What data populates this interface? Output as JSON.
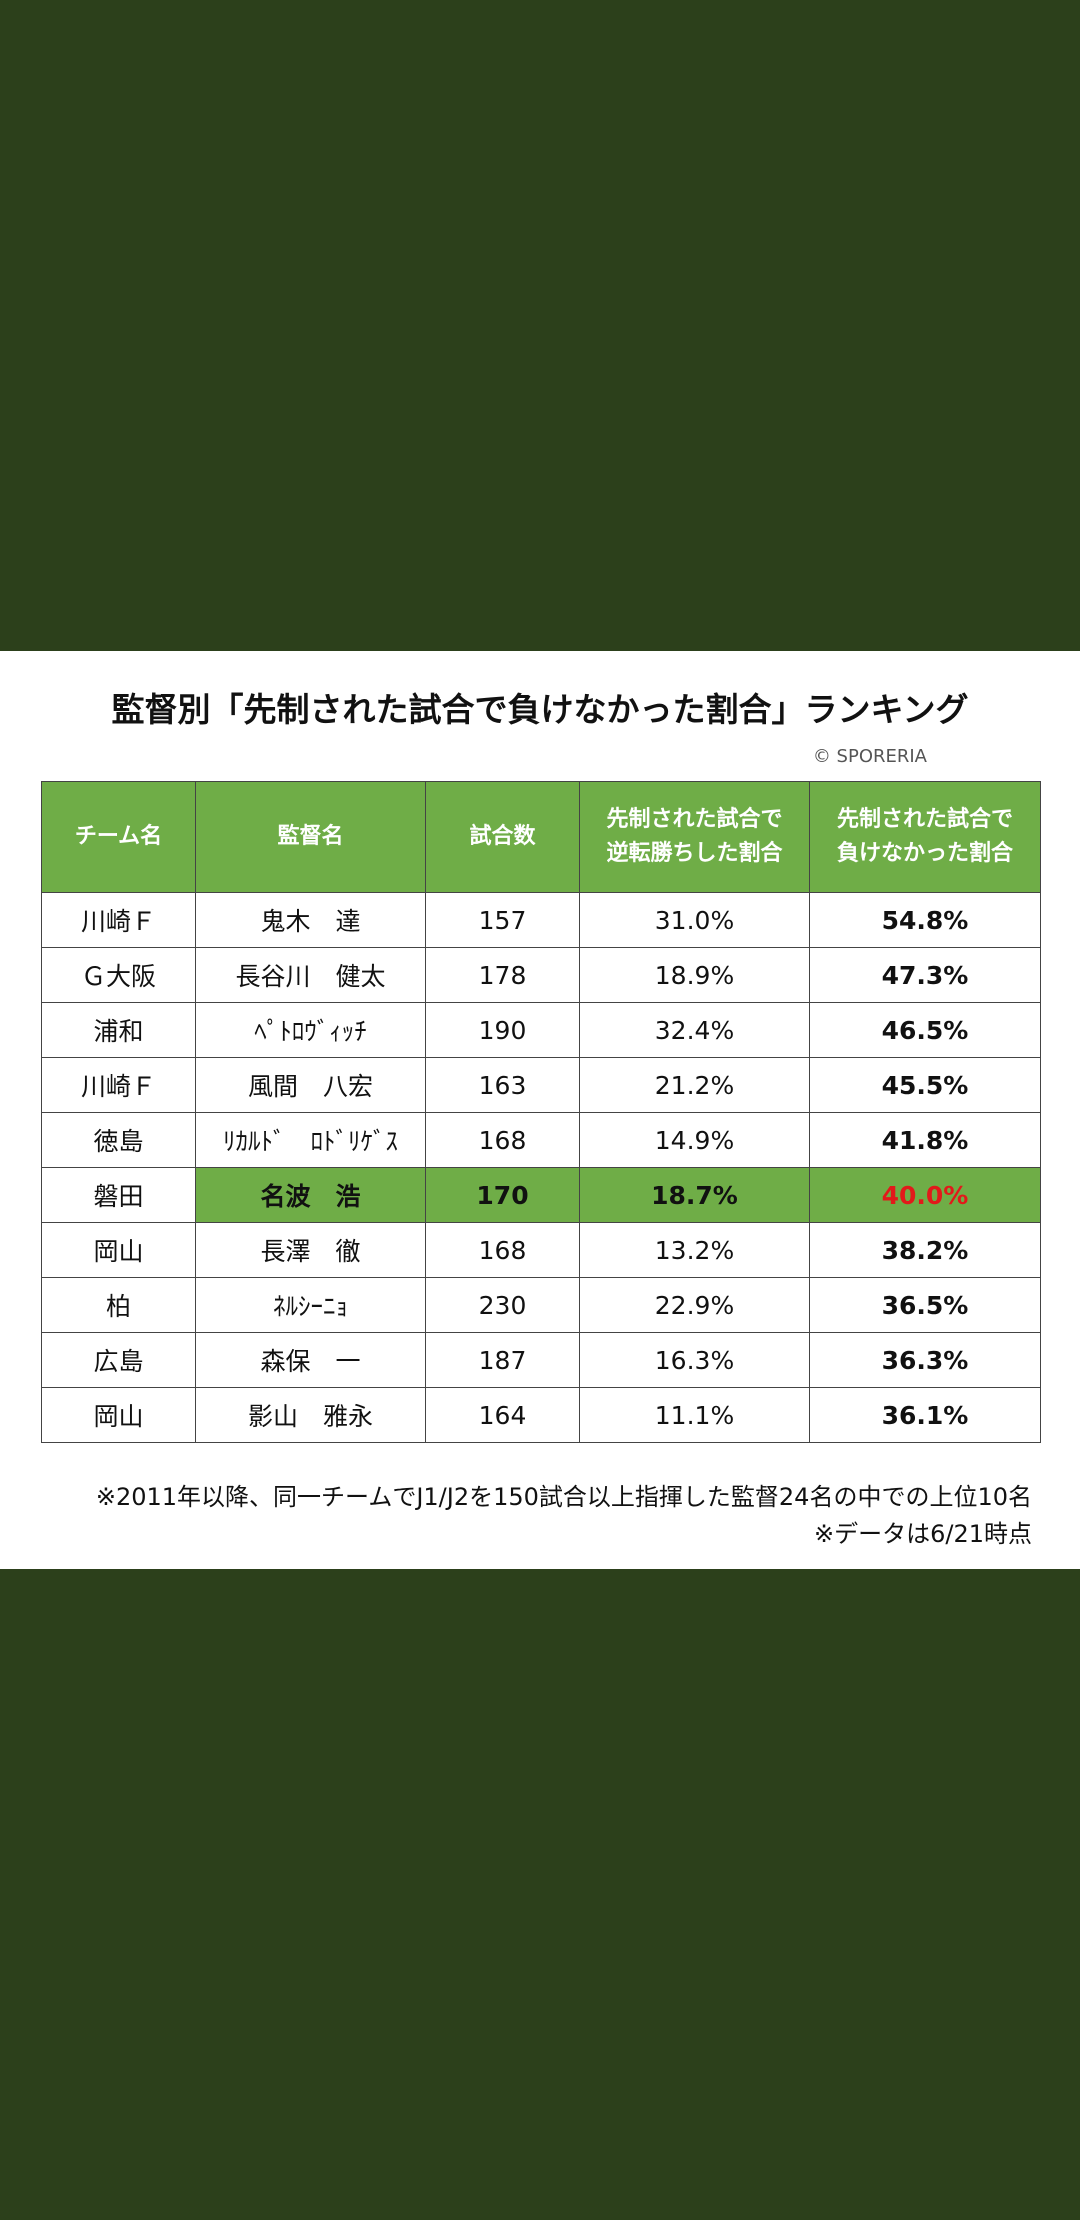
{
  "colors": {
    "background": "#2c401b",
    "header_green": "#6fad47",
    "highlight_red": "#e21a1a"
  },
  "chart_data": {
    "type": "table",
    "title": "監督別「先制された試合で負けなかった割合」ランキング",
    "credit": "© SPORERIA",
    "columns": [
      "チーム名",
      "監督名",
      "試合数",
      "先制された試合で\n逆転勝ちした割合",
      "先制された試合で\n負けなかった割合"
    ],
    "column_lines": [
      [
        "チーム名"
      ],
      [
        "監督名"
      ],
      [
        "試合数"
      ],
      [
        "先制された試合で",
        "逆転勝ちした割合"
      ],
      [
        "先制された試合で",
        "負けなかった割合"
      ]
    ],
    "rows": [
      {
        "team": "川崎Ｆ",
        "manager": "鬼木　達",
        "games": 157,
        "comeback_rate": "31.0%",
        "unbeaten_rate": "54.8%",
        "highlight": false
      },
      {
        "team": "Ｇ大阪",
        "manager": "長谷川　健太",
        "games": 178,
        "comeback_rate": "18.9%",
        "unbeaten_rate": "47.3%",
        "highlight": false
      },
      {
        "team": "浦和",
        "manager": "ﾍﾟﾄﾛｳﾞｨｯﾁ",
        "games": 190,
        "comeback_rate": "32.4%",
        "unbeaten_rate": "46.5%",
        "highlight": false
      },
      {
        "team": "川崎Ｆ",
        "manager": "風間　八宏",
        "games": 163,
        "comeback_rate": "21.2%",
        "unbeaten_rate": "45.5%",
        "highlight": false
      },
      {
        "team": "徳島",
        "manager": "ﾘｶﾙﾄﾞ　ﾛﾄﾞﾘｹﾞｽ",
        "games": 168,
        "comeback_rate": "14.9%",
        "unbeaten_rate": "41.8%",
        "highlight": false
      },
      {
        "team": "磐田",
        "manager": "名波　浩",
        "games": 170,
        "comeback_rate": "18.7%",
        "unbeaten_rate": "40.0%",
        "highlight": true
      },
      {
        "team": "岡山",
        "manager": "長澤　徹",
        "games": 168,
        "comeback_rate": "13.2%",
        "unbeaten_rate": "38.2%",
        "highlight": false
      },
      {
        "team": "柏",
        "manager": "ﾈﾙｼｰﾆｮ",
        "games": 230,
        "comeback_rate": "22.9%",
        "unbeaten_rate": "36.5%",
        "highlight": false
      },
      {
        "team": "広島",
        "manager": "森保　一",
        "games": 187,
        "comeback_rate": "16.3%",
        "unbeaten_rate": "36.3%",
        "highlight": false
      },
      {
        "team": "岡山",
        "manager": "影山　雅永",
        "games": 164,
        "comeback_rate": "11.1%",
        "unbeaten_rate": "36.1%",
        "highlight": false
      }
    ],
    "notes": [
      "※2011年以降、同一チームでJ1/J2を150試合以上指揮した監督24名の中での上位10名",
      "※データは6/21時点"
    ]
  }
}
